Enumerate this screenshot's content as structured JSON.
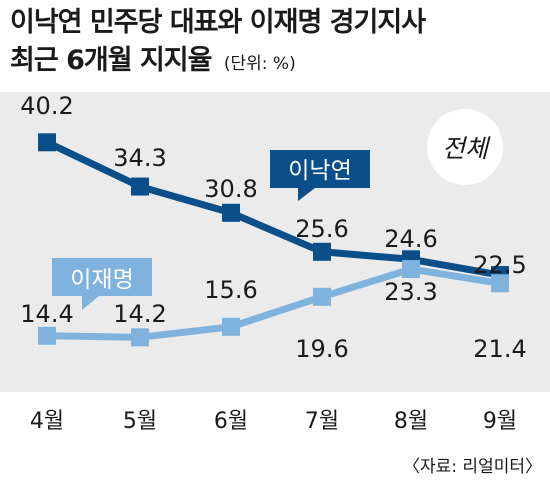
{
  "header": {
    "title": "이낙연 민주당 대표와 이재명 경기지사",
    "subtitle": "최근 6개월 지지율",
    "unit": "(단위: %)"
  },
  "badge": "전체",
  "source": "〈자료: 리얼미터〉",
  "colors": {
    "series1": "#0b4f8a",
    "series2": "#7fb2dd",
    "background": "#ebebeb"
  },
  "chart_data": {
    "type": "line",
    "categories": [
      "4월",
      "5월",
      "6월",
      "7월",
      "8월",
      "9월"
    ],
    "series": [
      {
        "name": "이낙연",
        "values": [
          40.2,
          34.3,
          30.8,
          25.6,
          24.6,
          22.5
        ]
      },
      {
        "name": "이재명",
        "values": [
          14.4,
          14.2,
          15.6,
          19.6,
          23.3,
          21.4
        ]
      }
    ],
    "ylim": [
      10,
      45
    ],
    "legend": "inline labels"
  }
}
